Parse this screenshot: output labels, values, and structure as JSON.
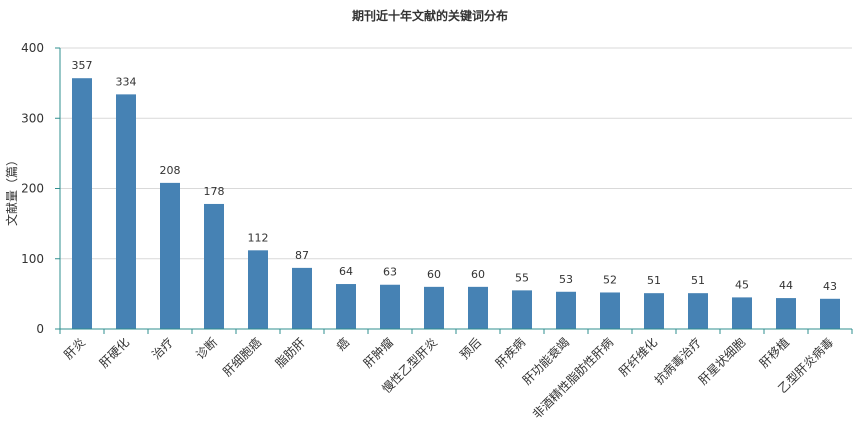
{
  "chart_data": {
    "type": "bar",
    "title": "期刊近十年文献的关键词分布",
    "xlabel": "",
    "ylabel": "文献量（篇）",
    "ylim": [
      0,
      400
    ],
    "yticks": [
      0,
      100,
      200,
      300,
      400
    ],
    "grid": true,
    "legend": "none",
    "categories": [
      "肝炎",
      "肝硬化",
      "治疗",
      "诊断",
      "肝细胞癌",
      "脂肪肝",
      "癌",
      "肝肿瘤",
      "慢性乙型肝炎",
      "预后",
      "肝疾病",
      "肝功能衰竭",
      "非酒精性脂肪性肝病",
      "肝纤维化",
      "抗病毒治疗",
      "肝星状细胞",
      "肝移植",
      "乙型肝炎病毒"
    ],
    "values": [
      357,
      334,
      208,
      178,
      112,
      87,
      64,
      63,
      60,
      60,
      55,
      53,
      52,
      51,
      51,
      45,
      44,
      43
    ],
    "colors": {
      "bar": "#4682b4",
      "axis": "#2f8f8f",
      "grid": "#d9d9d9",
      "text": "#333333"
    }
  }
}
